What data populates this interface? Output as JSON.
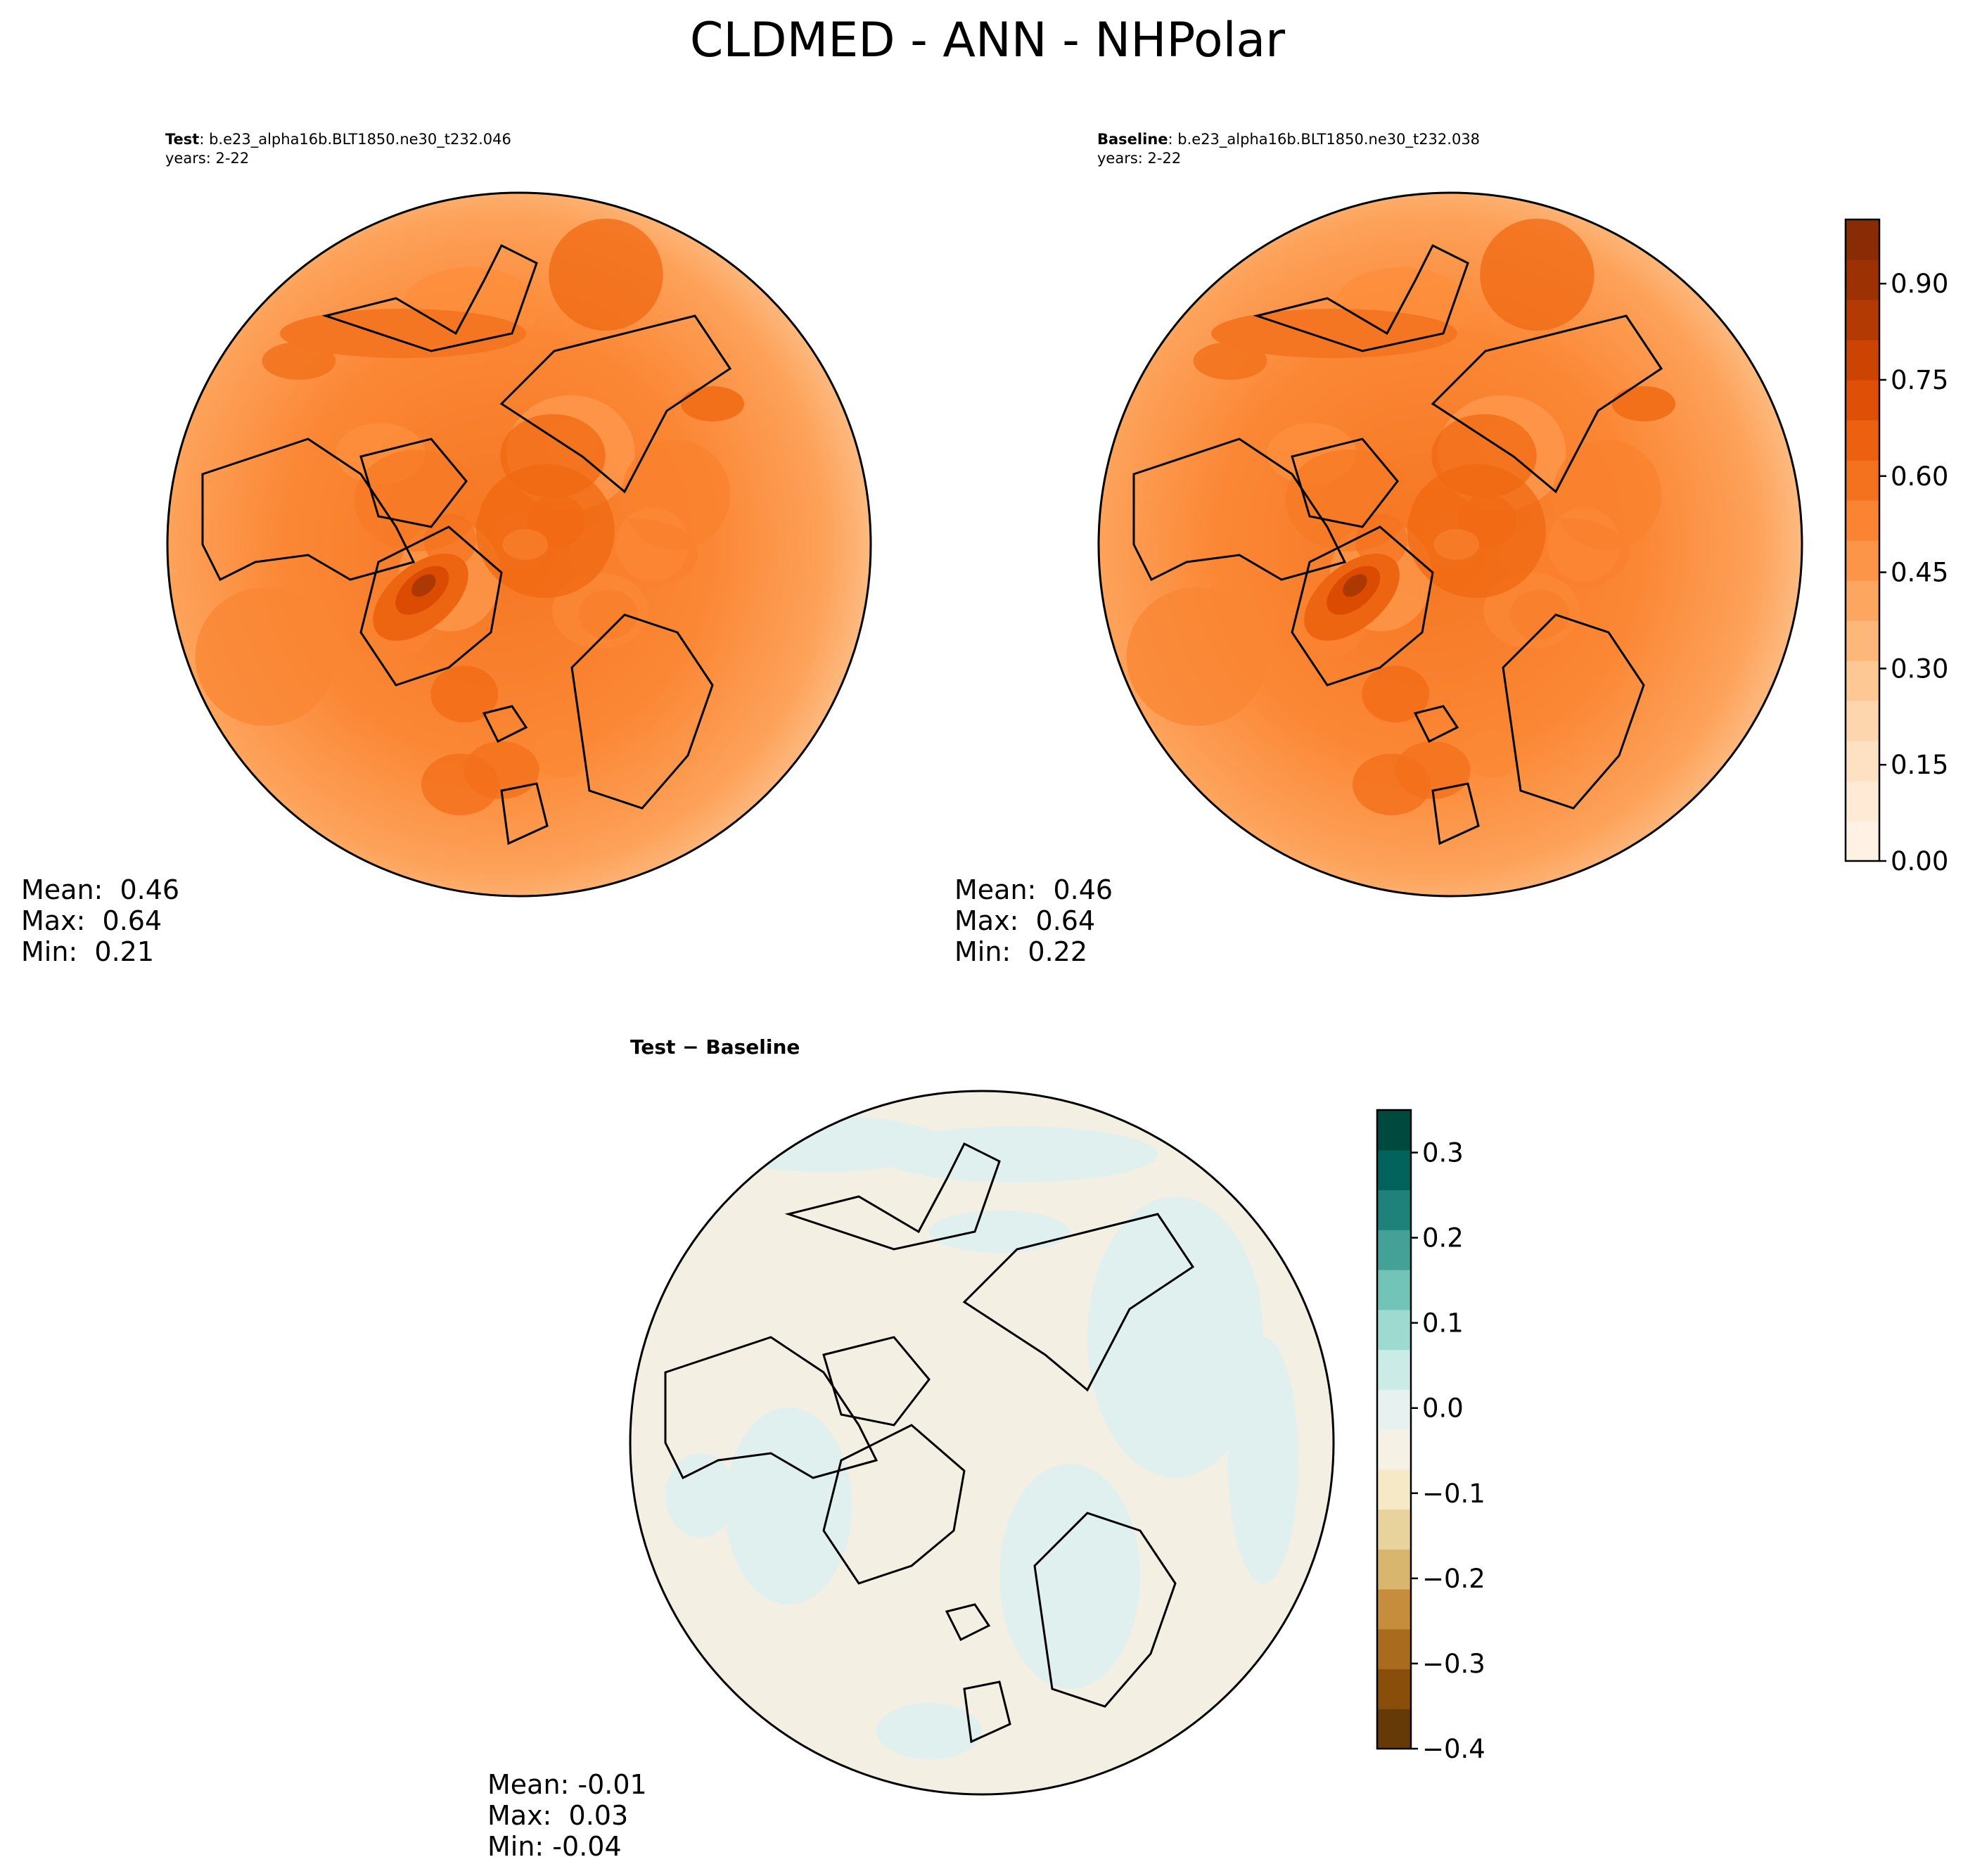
{
  "figure_title": "CLDMED - ANN - NHPolar",
  "colors": {
    "test_baseline_map": [
      "#fff5eb",
      "#fee6ce",
      "#fdd0a2",
      "#fdae6b",
      "#fd8d3c",
      "#f16913",
      "#d94801",
      "#a63603",
      "#7f2704"
    ],
    "diff_map": [
      "#543005",
      "#8c510a",
      "#bf812d",
      "#dfc27d",
      "#f6e8c3",
      "#f5f5f5",
      "#c7eae5",
      "#80cdc1",
      "#35978f",
      "#01665e",
      "#003c30"
    ],
    "coastline": "#000000"
  },
  "panels": {
    "test": {
      "label": "Test",
      "case": ": b.e23_alpha16b.BLT1850.ne30_t232.046",
      "years": "years: 2-22",
      "stats": {
        "mean": "Mean:  0.46",
        "max": "Max:  0.64",
        "min": "Min:  0.21"
      }
    },
    "baseline": {
      "label": "Baseline",
      "case": ": b.e23_alpha16b.BLT1850.ne30_t232.038",
      "years": "years: 2-22",
      "stats": {
        "mean": "Mean:  0.46",
        "max": "Max:  0.64",
        "min": "Min:  0.22"
      }
    },
    "diff": {
      "label": "Test − Baseline",
      "stats": {
        "mean": "Mean: -0.01",
        "max": "Max:  0.03",
        "min": "Min: -0.04"
      }
    }
  },
  "chart_data": [
    {
      "type": "heatmap",
      "panel": "Test",
      "projection": "north polar stereographic",
      "title": "Test: b.e23_alpha16b.BLT1850.ne30_t232.046",
      "subtitle": "years: 2-22",
      "mean": 0.46,
      "max": 0.64,
      "min": 0.21,
      "colorbar": {
        "range": [
          0.0,
          1.0
        ],
        "ticks": [
          0.0,
          0.15,
          0.3,
          0.45,
          0.6,
          0.75,
          0.9
        ],
        "tick_labels": [
          "0.00",
          "0.15",
          "0.30",
          "0.45",
          "0.60",
          "0.75",
          "0.90"
        ]
      }
    },
    {
      "type": "heatmap",
      "panel": "Baseline",
      "projection": "north polar stereographic",
      "title": "Baseline: b.e23_alpha16b.BLT1850.ne30_t232.038",
      "subtitle": "years: 2-22",
      "mean": 0.46,
      "max": 0.64,
      "min": 0.22,
      "colorbar": {
        "range": [
          0.0,
          1.0
        ],
        "ticks": [
          0.0,
          0.15,
          0.3,
          0.45,
          0.6,
          0.75,
          0.9
        ],
        "tick_labels": [
          "0.00",
          "0.15",
          "0.30",
          "0.45",
          "0.60",
          "0.75",
          "0.90"
        ]
      }
    },
    {
      "type": "heatmap",
      "panel": "Test - Baseline",
      "projection": "north polar stereographic",
      "title": "Test − Baseline",
      "mean": -0.01,
      "max": 0.03,
      "min": -0.04,
      "colorbar": {
        "range": [
          -0.4,
          0.35
        ],
        "ticks": [
          -0.4,
          -0.3,
          -0.2,
          -0.1,
          0.0,
          0.1,
          0.2,
          0.3
        ],
        "tick_labels": [
          "−0.4",
          "−0.3",
          "−0.2",
          "−0.1",
          "0.0",
          "0.1",
          "0.2",
          "0.3"
        ]
      }
    }
  ]
}
